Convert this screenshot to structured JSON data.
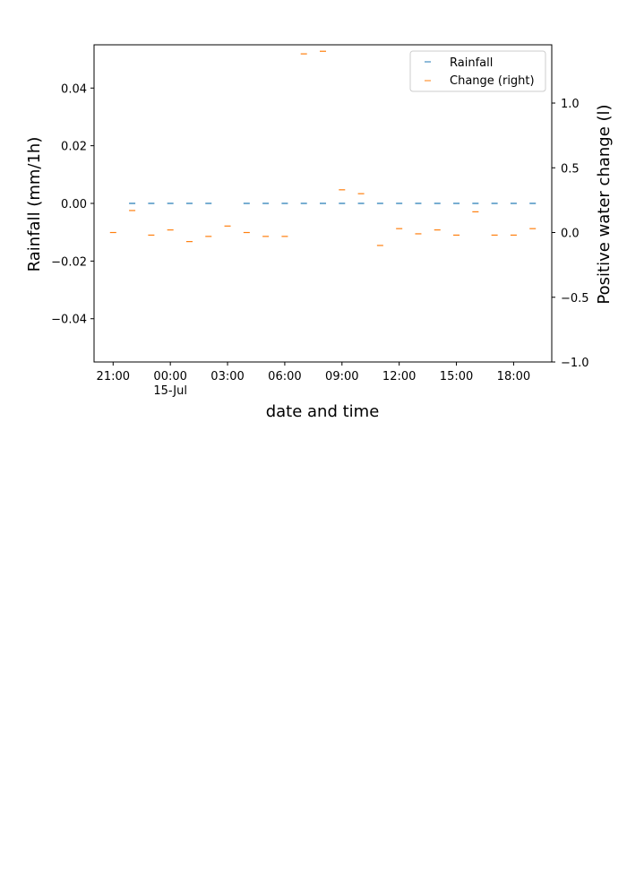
{
  "chart_data": {
    "type": "scatter",
    "title": "",
    "xlabel": "date and time",
    "ylabel": "Rainfall (mm/1h)",
    "ylabel_right": "Positive water change (l)",
    "marker": "_",
    "x_range": [
      "14-Jul 20:00",
      "15-Jul 20:00"
    ],
    "ylim": [
      -0.055,
      0.055
    ],
    "ylim_right": [
      -1.0,
      1.45
    ],
    "x_ticks": [
      {
        "at": "14-Jul 21:00",
        "label": "21:00",
        "sublabel": ""
      },
      {
        "at": "15-Jul 00:00",
        "label": "00:00",
        "sublabel": "15-Jul"
      },
      {
        "at": "15-Jul 03:00",
        "label": "03:00",
        "sublabel": ""
      },
      {
        "at": "15-Jul 06:00",
        "label": "06:00",
        "sublabel": ""
      },
      {
        "at": "15-Jul 09:00",
        "label": "09:00",
        "sublabel": ""
      },
      {
        "at": "15-Jul 12:00",
        "label": "12:00",
        "sublabel": ""
      },
      {
        "at": "15-Jul 15:00",
        "label": "15:00",
        "sublabel": ""
      },
      {
        "at": "15-Jul 18:00",
        "label": "18:00",
        "sublabel": ""
      }
    ],
    "y_ticks": [
      {
        "value": 0.04,
        "label": "0.04"
      },
      {
        "value": 0.02,
        "label": "0.02"
      },
      {
        "value": 0.0,
        "label": "0.00"
      },
      {
        "value": -0.02,
        "label": "−0.02"
      },
      {
        "value": -0.04,
        "label": "−0.04"
      }
    ],
    "y_ticks_right": [
      {
        "value": 1.0,
        "label": "1.0"
      },
      {
        "value": 0.5,
        "label": "0.5"
      },
      {
        "value": 0.0,
        "label": "0.0"
      },
      {
        "value": -0.5,
        "label": "−0.5"
      },
      {
        "value": -1.0,
        "label": "−1.0"
      }
    ],
    "legend": {
      "placement": "top-right",
      "entries": [
        {
          "label": "Rainfall",
          "series": 0
        },
        {
          "label": "Change (right)",
          "series": 1
        }
      ]
    },
    "series": [
      {
        "name": "Rainfall",
        "axis": "left",
        "color": "#1f77b4",
        "x": [
          "14-Jul 22:00",
          "14-Jul 23:00",
          "15-Jul 00:00",
          "15-Jul 01:00",
          "15-Jul 02:00",
          "15-Jul 04:00",
          "15-Jul 05:00",
          "15-Jul 06:00",
          "15-Jul 07:00",
          "15-Jul 08:00",
          "15-Jul 09:00",
          "15-Jul 10:00",
          "15-Jul 11:00",
          "15-Jul 12:00",
          "15-Jul 13:00",
          "15-Jul 14:00",
          "15-Jul 15:00",
          "15-Jul 16:00",
          "15-Jul 17:00",
          "15-Jul 18:00",
          "15-Jul 19:00"
        ],
        "y": [
          0,
          0,
          0,
          0,
          0,
          0,
          0,
          0,
          0,
          0,
          0,
          0,
          0,
          0,
          0,
          0,
          0,
          0,
          0,
          0,
          0
        ]
      },
      {
        "name": "Change (right)",
        "axis": "right",
        "color": "#ff7f0e",
        "x": [
          "14-Jul 21:00",
          "14-Jul 22:00",
          "14-Jul 23:00",
          "15-Jul 00:00",
          "15-Jul 01:00",
          "15-Jul 02:00",
          "15-Jul 03:00",
          "15-Jul 04:00",
          "15-Jul 05:00",
          "15-Jul 06:00",
          "15-Jul 07:00",
          "15-Jul 08:00",
          "15-Jul 09:00",
          "15-Jul 10:00",
          "15-Jul 11:00",
          "15-Jul 12:00",
          "15-Jul 13:00",
          "15-Jul 14:00",
          "15-Jul 15:00",
          "15-Jul 16:00",
          "15-Jul 17:00",
          "15-Jul 18:00",
          "15-Jul 19:00"
        ],
        "y": [
          0.0,
          0.17,
          -0.02,
          0.02,
          -0.07,
          -0.03,
          0.05,
          0.0,
          -0.03,
          -0.03,
          1.38,
          1.4,
          0.33,
          0.3,
          -0.1,
          0.03,
          -0.01,
          0.02,
          -0.02,
          0.16,
          -0.02,
          -0.02,
          0.03
        ]
      }
    ]
  }
}
